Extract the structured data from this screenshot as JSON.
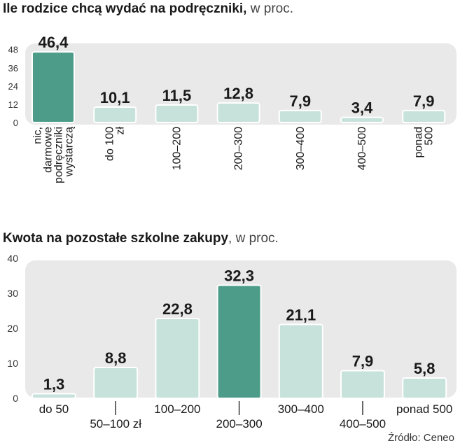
{
  "chart_data": [
    {
      "type": "bar",
      "title": "Ile rodzice chcą wydać na podręczniki,",
      "unit": "w proc.",
      "categories": [
        [
          "nic,",
          "darmowe",
          "podręczniki",
          "wystarczą"
        ],
        [
          "do 100",
          "zł"
        ],
        [
          "100–200"
        ],
        [
          "200–300"
        ],
        [
          "300–400"
        ],
        [
          "400–500"
        ],
        [
          "ponad",
          "500"
        ]
      ],
      "values": [
        46.4,
        10.1,
        11.5,
        12.8,
        7.9,
        3.4,
        7.9
      ],
      "value_labels": [
        "46,4",
        "10,1",
        "11,5",
        "12,8",
        "7,9",
        "3,4",
        "7,9"
      ],
      "yticks": [
        0,
        12,
        24,
        36,
        48
      ],
      "ylim": [
        0,
        52
      ],
      "highlight_index": 0,
      "category_label_orientation": "vertical"
    },
    {
      "type": "bar",
      "title": "Kwota na pozostałe szkolne zakupy",
      "unit": ", w proc.",
      "categories": [
        "do 50",
        "50–100 zł",
        "100–200",
        "200–300",
        "300–400",
        "400–500",
        "ponad 500"
      ],
      "values": [
        1.3,
        8.8,
        22.8,
        32.3,
        21.1,
        7.9,
        5.8
      ],
      "value_labels": [
        "1,3",
        "8,8",
        "22,8",
        "32,3",
        "21,1",
        "7,9",
        "5,8"
      ],
      "yticks": [
        0,
        10,
        20,
        30,
        40
      ],
      "ylim": [
        0,
        40
      ],
      "highlight_index": 3,
      "category_label_orientation": "staggered"
    }
  ],
  "source": "Źródło: Ceneo",
  "colors": {
    "panel": "#e9e9e9",
    "bar": "#c6e2da",
    "bar_highlight": "#4d9c8a",
    "bar_border": "#ffffff",
    "text": "#1a1a1a"
  }
}
